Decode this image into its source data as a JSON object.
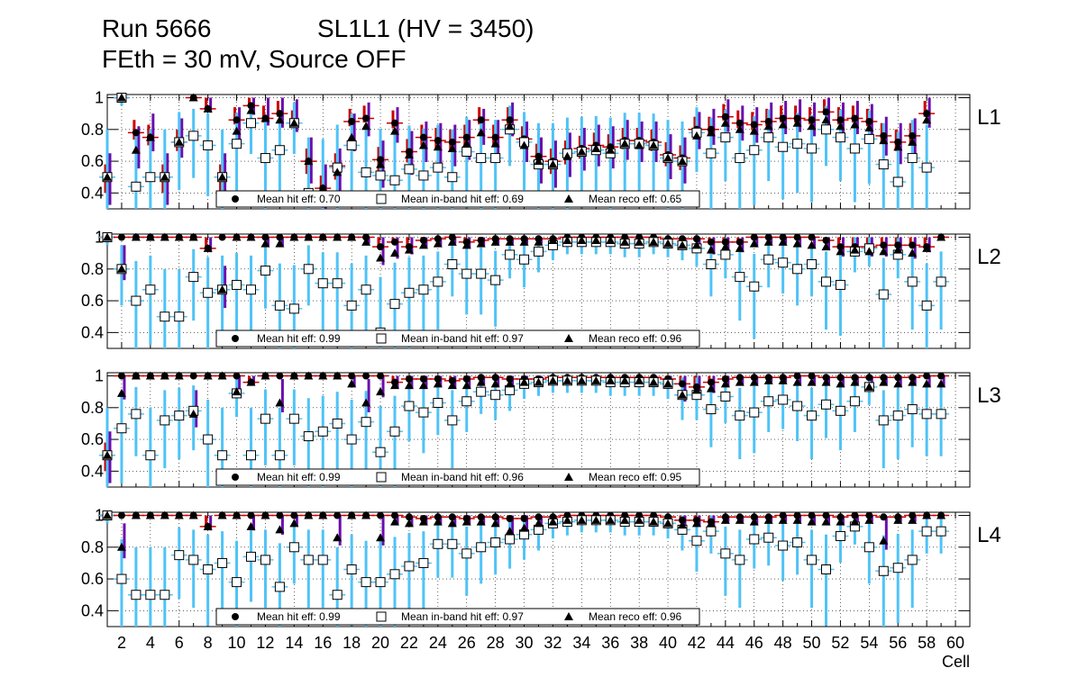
{
  "run_label": "Run 5666",
  "chamber_label": "SL1L1 (HV = 3450)",
  "config_label": "FEth = 30 mV, Source OFF",
  "colors": {
    "hit_err": "#cc0000",
    "inband_err": "#4fc3f7",
    "reco_err": "#6a0dad",
    "marker": "#000000"
  },
  "chart_data": {
    "type": "scatter",
    "xlabel": "Cell",
    "xlim": [
      1,
      61
    ],
    "ylim": [
      0.3,
      1.02
    ],
    "x_ticks": [
      "2",
      "4",
      "6",
      "8",
      "10",
      "12",
      "14",
      "16",
      "18",
      "20",
      "22",
      "24",
      "26",
      "28",
      "30",
      "32",
      "34",
      "36",
      "38",
      "40",
      "42",
      "44",
      "46",
      "48",
      "50",
      "52",
      "54",
      "56",
      "58",
      "60"
    ],
    "y_ticks": [
      "0.4",
      "0.6",
      "0.8",
      "1"
    ],
    "grid": true,
    "legend": [
      {
        "marker": "filled-circle",
        "label": "Mean hit  eff:"
      },
      {
        "marker": "open-square",
        "label": "Mean in-band hit eff:"
      },
      {
        "marker": "filled-triangle",
        "label": "Mean reco eff:"
      }
    ],
    "panels": [
      {
        "layer": "L1",
        "mean_hit": "0.70",
        "mean_inband": "0.69",
        "mean_reco": "0.65",
        "cells": [
          1,
          2,
          3,
          4,
          5,
          6,
          7,
          8,
          9,
          10,
          11,
          12,
          13,
          14,
          15,
          16,
          17,
          18,
          19,
          20,
          21,
          22,
          23,
          24,
          25,
          26,
          27,
          28,
          29,
          30,
          31,
          32,
          33,
          34,
          35,
          36,
          37,
          38,
          39,
          40,
          41,
          42,
          43,
          44,
          45,
          46,
          47,
          48,
          49,
          50,
          51,
          52,
          53,
          54,
          55,
          56,
          57,
          58
        ],
        "hit": [
          0.5,
          1.0,
          0.78,
          0.75,
          0.5,
          0.72,
          1.0,
          0.93,
          0.5,
          0.86,
          0.95,
          0.87,
          0.9,
          0.84,
          0.6,
          0.43,
          0.57,
          0.85,
          0.87,
          0.61,
          0.84,
          0.66,
          0.75,
          0.73,
          0.72,
          0.75,
          0.86,
          0.75,
          0.86,
          0.74,
          0.63,
          0.6,
          0.65,
          0.68,
          0.7,
          0.69,
          0.73,
          0.73,
          0.72,
          0.64,
          0.62,
          0.8,
          0.8,
          0.88,
          0.84,
          0.83,
          0.85,
          0.87,
          0.87,
          0.86,
          0.91,
          0.86,
          0.87,
          0.85,
          0.76,
          0.72,
          0.76,
          0.9
        ],
        "inband": [
          0.5,
          1.0,
          0.44,
          0.5,
          0.5,
          0.72,
          0.76,
          0.7,
          0.5,
          0.71,
          0.84,
          0.62,
          0.67,
          0.84,
          0.4,
          0.38,
          0.56,
          0.7,
          0.53,
          0.51,
          0.48,
          0.55,
          0.51,
          0.56,
          0.5,
          0.66,
          0.62,
          0.62,
          0.8,
          0.72,
          0.58,
          0.58,
          0.65,
          0.66,
          0.67,
          0.65,
          0.71,
          0.71,
          0.7,
          0.62,
          0.6,
          0.78,
          0.65,
          0.75,
          0.62,
          0.67,
          0.75,
          0.69,
          0.71,
          0.68,
          0.8,
          0.75,
          0.68,
          0.74,
          0.58,
          0.47,
          0.62,
          0.56
        ],
        "reco": [
          0.5,
          1.0,
          0.67,
          0.75,
          0.5,
          0.72,
          1.0,
          0.93,
          0.5,
          0.79,
          0.92,
          0.87,
          0.86,
          0.84,
          0.6,
          0.43,
          0.53,
          0.75,
          0.82,
          0.58,
          0.79,
          0.64,
          0.7,
          0.69,
          0.68,
          0.71,
          0.78,
          0.71,
          0.82,
          0.7,
          0.6,
          0.58,
          0.63,
          0.66,
          0.68,
          0.67,
          0.71,
          0.7,
          0.7,
          0.62,
          0.6,
          0.76,
          0.78,
          0.84,
          0.8,
          0.79,
          0.82,
          0.83,
          0.84,
          0.82,
          0.86,
          0.82,
          0.83,
          0.81,
          0.73,
          0.69,
          0.72,
          0.86
        ]
      },
      {
        "layer": "L2",
        "mean_hit": "0.99",
        "mean_inband": "0.97",
        "mean_reco": "0.96",
        "cells": [
          1,
          2,
          3,
          4,
          5,
          6,
          7,
          8,
          9,
          10,
          11,
          12,
          13,
          14,
          15,
          16,
          17,
          18,
          19,
          20,
          21,
          22,
          23,
          24,
          25,
          26,
          27,
          28,
          29,
          30,
          31,
          32,
          33,
          34,
          35,
          36,
          37,
          38,
          39,
          40,
          41,
          42,
          43,
          44,
          45,
          46,
          47,
          48,
          49,
          50,
          51,
          52,
          53,
          54,
          55,
          56,
          57,
          58,
          59
        ],
        "hit": [
          1.0,
          1.0,
          1.0,
          1.0,
          1.0,
          1.0,
          1.0,
          0.93,
          1.0,
          1.0,
          1.0,
          1.0,
          1.0,
          1.0,
          1.0,
          1.0,
          1.0,
          1.0,
          1.0,
          0.94,
          0.97,
          0.94,
          0.98,
          0.99,
          1.0,
          0.97,
          0.98,
          0.99,
          0.99,
          0.99,
          0.99,
          0.99,
          1.0,
          1.0,
          1.0,
          1.0,
          1.0,
          1.0,
          1.0,
          0.99,
          0.99,
          0.99,
          0.97,
          0.97,
          0.97,
          1.0,
          1.0,
          1.0,
          1.0,
          1.0,
          0.98,
          0.94,
          0.94,
          0.94,
          0.95,
          0.95,
          0.95,
          0.94,
          1.0
        ],
        "inband": [
          1.0,
          0.8,
          0.6,
          0.67,
          0.5,
          0.5,
          0.75,
          0.65,
          0.67,
          0.7,
          0.67,
          0.79,
          0.57,
          0.55,
          0.8,
          0.71,
          0.71,
          0.57,
          0.67,
          0.4,
          0.58,
          0.65,
          0.67,
          0.72,
          0.83,
          0.77,
          0.77,
          0.73,
          0.89,
          0.86,
          0.91,
          0.95,
          0.97,
          0.97,
          0.97,
          0.97,
          0.96,
          0.96,
          0.97,
          0.96,
          0.95,
          0.93,
          0.83,
          0.89,
          0.75,
          0.69,
          0.86,
          0.84,
          0.8,
          0.83,
          0.72,
          0.7,
          0.91,
          0.93,
          0.64,
          0.89,
          0.72,
          0.57,
          0.72
        ],
        "reco": [
          1.0,
          0.8,
          1.0,
          1.0,
          1.0,
          1.0,
          1.0,
          0.93,
          0.67,
          1.0,
          1.0,
          0.96,
          0.96,
          1.0,
          1.0,
          1.0,
          1.0,
          1.0,
          0.97,
          0.87,
          0.9,
          0.92,
          0.95,
          0.96,
          0.97,
          0.95,
          0.96,
          0.97,
          0.97,
          0.97,
          0.97,
          0.98,
          0.98,
          0.98,
          0.98,
          0.98,
          0.97,
          0.97,
          0.97,
          0.96,
          0.95,
          0.95,
          0.92,
          0.94,
          0.93,
          0.96,
          0.97,
          0.97,
          0.96,
          0.95,
          0.94,
          0.91,
          0.92,
          0.91,
          0.91,
          0.92,
          0.9,
          0.93,
          1.0
        ]
      },
      {
        "layer": "L3",
        "mean_hit": "0.99",
        "mean_inband": "0.96",
        "mean_reco": "0.95",
        "cells": [
          1,
          2,
          3,
          4,
          5,
          6,
          7,
          8,
          9,
          10,
          11,
          12,
          13,
          14,
          15,
          16,
          17,
          18,
          19,
          20,
          21,
          22,
          23,
          24,
          25,
          26,
          27,
          28,
          29,
          30,
          31,
          32,
          33,
          34,
          35,
          36,
          37,
          38,
          39,
          40,
          41,
          42,
          43,
          44,
          45,
          46,
          47,
          48,
          49,
          50,
          51,
          52,
          53,
          54,
          55,
          56,
          57,
          58,
          59
        ],
        "hit": [
          0.5,
          1.0,
          1.0,
          1.0,
          1.0,
          1.0,
          1.0,
          1.0,
          1.0,
          1.0,
          0.96,
          1.0,
          1.0,
          1.0,
          1.0,
          1.0,
          1.0,
          1.0,
          1.0,
          1.0,
          0.96,
          0.98,
          0.98,
          0.98,
          0.97,
          0.98,
          0.99,
          0.99,
          0.98,
          0.98,
          0.98,
          0.99,
          0.99,
          0.99,
          0.99,
          0.99,
          0.99,
          0.99,
          0.99,
          0.98,
          0.95,
          0.93,
          0.96,
          0.98,
          0.99,
          0.99,
          0.99,
          0.99,
          1.0,
          1.0,
          0.99,
          0.99,
          0.99,
          0.99,
          0.99,
          0.99,
          0.99,
          1.0,
          1.0
        ],
        "inband": [
          0.5,
          0.67,
          0.76,
          0.5,
          0.72,
          0.75,
          0.78,
          0.6,
          0.5,
          0.89,
          0.5,
          0.73,
          0.5,
          0.73,
          0.62,
          0.65,
          0.7,
          0.6,
          0.71,
          0.52,
          0.65,
          0.81,
          0.77,
          0.83,
          0.72,
          0.84,
          0.9,
          0.88,
          0.91,
          0.95,
          0.96,
          0.97,
          0.97,
          0.97,
          0.97,
          0.96,
          0.96,
          0.96,
          0.96,
          0.95,
          0.88,
          0.88,
          0.79,
          0.87,
          0.75,
          0.77,
          0.84,
          0.85,
          0.81,
          0.75,
          0.82,
          0.78,
          0.84,
          0.93,
          0.72,
          0.75,
          0.79,
          0.76,
          0.76
        ],
        "reco": [
          0.5,
          0.89,
          1.0,
          1.0,
          1.0,
          1.0,
          0.76,
          1.0,
          1.0,
          0.9,
          0.96,
          1.0,
          0.83,
          1.0,
          1.0,
          1.0,
          1.0,
          0.95,
          0.83,
          0.9,
          0.94,
          0.94,
          0.94,
          0.95,
          0.94,
          0.94,
          0.96,
          0.95,
          0.95,
          0.96,
          0.96,
          0.97,
          0.97,
          0.97,
          0.97,
          0.97,
          0.97,
          0.97,
          0.96,
          0.95,
          0.88,
          0.91,
          0.92,
          0.95,
          0.96,
          0.96,
          0.97,
          0.97,
          0.96,
          0.96,
          0.96,
          0.95,
          0.96,
          0.93,
          0.96,
          0.95,
          0.96,
          0.95,
          0.95
        ]
      },
      {
        "layer": "L4",
        "mean_hit": "0.99",
        "mean_inband": "0.97",
        "mean_reco": "0.96",
        "cells": [
          1,
          2,
          3,
          4,
          5,
          6,
          7,
          8,
          9,
          10,
          11,
          12,
          13,
          14,
          15,
          16,
          17,
          18,
          19,
          20,
          21,
          22,
          23,
          24,
          25,
          26,
          27,
          28,
          29,
          30,
          31,
          32,
          33,
          34,
          35,
          36,
          37,
          38,
          39,
          40,
          41,
          42,
          43,
          44,
          45,
          46,
          47,
          48,
          49,
          50,
          51,
          52,
          53,
          54,
          55,
          56,
          57,
          58,
          59
        ],
        "hit": [
          1.0,
          1.0,
          1.0,
          1.0,
          1.0,
          1.0,
          1.0,
          0.93,
          1.0,
          1.0,
          1.0,
          1.0,
          1.0,
          1.0,
          1.0,
          1.0,
          1.0,
          1.0,
          1.0,
          1.0,
          1.0,
          0.99,
          0.98,
          0.99,
          0.99,
          0.98,
          0.99,
          0.99,
          0.98,
          0.98,
          0.99,
          0.99,
          1.0,
          1.0,
          1.0,
          1.0,
          1.0,
          1.0,
          1.0,
          0.99,
          0.97,
          0.97,
          0.96,
          0.99,
          0.99,
          0.99,
          0.99,
          1.0,
          1.0,
          1.0,
          1.0,
          0.99,
          1.0,
          1.0,
          0.99,
          0.99,
          1.0,
          1.0,
          1.0
        ],
        "inband": [
          1.0,
          0.6,
          0.5,
          0.5,
          0.5,
          0.75,
          0.72,
          0.66,
          0.7,
          0.58,
          0.74,
          0.72,
          0.55,
          0.8,
          0.72,
          0.72,
          0.5,
          0.66,
          0.58,
          0.58,
          0.63,
          0.68,
          0.7,
          0.82,
          0.82,
          0.76,
          0.8,
          0.83,
          0.85,
          0.88,
          0.91,
          0.95,
          0.96,
          0.97,
          0.97,
          0.97,
          0.96,
          0.96,
          0.96,
          0.95,
          0.91,
          0.84,
          0.9,
          0.76,
          0.72,
          0.85,
          0.86,
          0.81,
          0.83,
          0.72,
          0.66,
          0.87,
          0.93,
          0.8,
          0.65,
          0.67,
          0.72,
          0.9,
          0.9
        ],
        "reco": [
          1.0,
          0.8,
          1.0,
          1.0,
          1.0,
          1.0,
          1.0,
          0.93,
          1.0,
          1.0,
          0.93,
          1.0,
          0.91,
          0.95,
          1.0,
          1.0,
          0.86,
          1.0,
          1.0,
          0.86,
          0.96,
          0.95,
          0.96,
          0.96,
          0.95,
          0.96,
          0.96,
          0.95,
          0.9,
          0.92,
          0.95,
          0.96,
          0.97,
          0.97,
          0.97,
          0.97,
          0.97,
          0.97,
          0.96,
          0.95,
          0.94,
          0.95,
          0.95,
          0.97,
          0.97,
          0.96,
          0.97,
          0.97,
          0.97,
          0.96,
          0.96,
          0.96,
          0.96,
          0.97,
          0.84,
          0.97,
          0.97,
          1.0,
          1.0
        ]
      }
    ]
  }
}
